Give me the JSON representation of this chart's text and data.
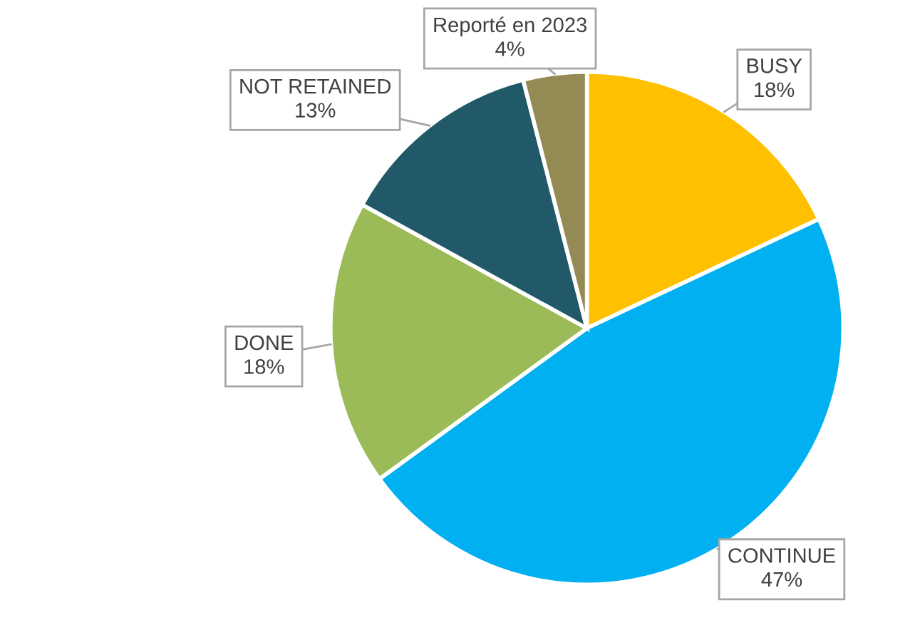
{
  "chart_data": {
    "type": "pie",
    "categories": [
      "BUSY",
      "CONTINUE",
      "DONE",
      "NOT RETAINED",
      "Reporté en 2023"
    ],
    "values": [
      18,
      47,
      18,
      13,
      4
    ],
    "value_labels": [
      "18%",
      "47%",
      "18%",
      "13%",
      "4%"
    ],
    "colors": [
      "#ffc000",
      "#00b0f0",
      "#9bbb59",
      "#215968",
      "#948a54"
    ],
    "legend": false
  }
}
